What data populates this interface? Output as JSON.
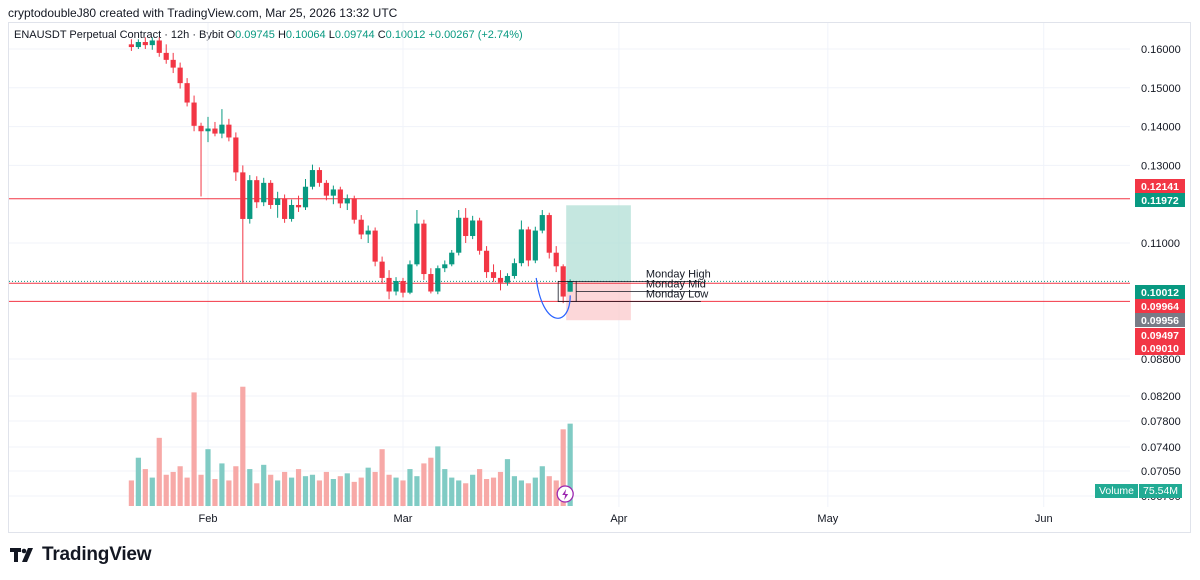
{
  "header": {
    "credit": "cryptodoubleJ80 created with TradingView.com, Mar 25, 2026 13:32 UTC"
  },
  "legend": {
    "symbol": "ENAUSDT Perpetual Contract · 12h · Bybit",
    "o_label": "O",
    "o_value": "0.09745",
    "h_label": "H",
    "h_value": "0.10064",
    "l_label": "L",
    "l_value": "0.09744",
    "c_label": "C",
    "c_value": "0.10012",
    "change": "+0.00267 (+2.74%)"
  },
  "colors": {
    "up": "#089981",
    "down": "#f23645",
    "level_line": "#f23645",
    "target_zone": "#b2dfd6",
    "stop_zone": "#fbc9cc",
    "arc": "#2962ff",
    "brand": "#131722"
  },
  "branding": {
    "logo_icon": "tradingview-logo-icon",
    "logo_text": "TradingView"
  },
  "volume_badge": {
    "label": "Volume",
    "value": "75.54M"
  },
  "chart_data": {
    "type": "candlestick",
    "timeframe": "12h",
    "y_tick_labels": [
      "0.16000",
      "0.15000",
      "0.14000",
      "0.13000",
      "0.11000",
      "0.08800",
      "0.08200",
      "0.07800",
      "0.07400",
      "0.07050",
      "0.06700"
    ],
    "y_ticks": [
      0.16,
      0.15,
      0.14,
      0.13,
      0.11,
      0.088,
      0.082,
      0.078,
      0.074,
      0.0705,
      0.067
    ],
    "x_ticks": [
      {
        "label": "Feb",
        "date": "2026-02-01"
      },
      {
        "label": "Mar",
        "date": "2026-03-01"
      },
      {
        "label": "Apr",
        "date": "2026-04-01"
      },
      {
        "label": "May",
        "date": "2026-05-01"
      },
      {
        "label": "Jun",
        "date": "2026-06-01"
      }
    ],
    "price_labels": [
      {
        "value": "0.12141",
        "color": "#f23645"
      },
      {
        "value": "0.11972",
        "color": "#089981"
      },
      {
        "value": "0.10012",
        "color": "#089981"
      },
      {
        "value": "0.09964",
        "color": "#f23645"
      },
      {
        "value": "0.09956",
        "color": "#787b86"
      },
      {
        "value": "0.09497",
        "color": "#f23645"
      },
      {
        "value": "0.09010",
        "color": "#f23645"
      }
    ],
    "horizontal_levels": [
      0.12141,
      0.09964,
      0.09497
    ],
    "annotations": [
      {
        "text": "Monday High",
        "price": 0.1001
      },
      {
        "text": "Monday Mid",
        "price": 0.0975
      },
      {
        "text": "Monday Low",
        "price": 0.0949
      }
    ],
    "position": {
      "entry": 0.09985,
      "target": 0.11972,
      "stop": 0.0901,
      "start": "2026-03-24",
      "end": "2026-04-01"
    },
    "candles": [
      {
        "date": "2026-01-21",
        "o": 0.1612,
        "h": 0.1625,
        "l": 0.1595,
        "c": 0.1605
      },
      {
        "date": "2026-01-22",
        "o": 0.1605,
        "h": 0.1625,
        "l": 0.16,
        "c": 0.1618
      },
      {
        "date": "2026-01-23",
        "o": 0.1618,
        "h": 0.163,
        "l": 0.16,
        "c": 0.161
      },
      {
        "date": "2026-01-24",
        "o": 0.161,
        "h": 0.163,
        "l": 0.1598,
        "c": 0.1622
      },
      {
        "date": "2026-01-25",
        "o": 0.1622,
        "h": 0.163,
        "l": 0.158,
        "c": 0.159
      },
      {
        "date": "2026-01-26",
        "o": 0.159,
        "h": 0.1612,
        "l": 0.1562,
        "c": 0.1572
      },
      {
        "date": "2026-01-27",
        "o": 0.1572,
        "h": 0.159,
        "l": 0.1538,
        "c": 0.1552
      },
      {
        "date": "2026-01-28",
        "o": 0.1552,
        "h": 0.1565,
        "l": 0.1498,
        "c": 0.1512
      },
      {
        "date": "2026-01-29",
        "o": 0.1512,
        "h": 0.1525,
        "l": 0.1452,
        "c": 0.1462
      },
      {
        "date": "2026-01-30",
        "o": 0.1462,
        "h": 0.148,
        "l": 0.1388,
        "c": 0.1402
      },
      {
        "date": "2026-01-31",
        "o": 0.1402,
        "h": 0.141,
        "l": 0.122,
        "c": 0.1388
      },
      {
        "date": "2026-02-01",
        "o": 0.1388,
        "h": 0.1425,
        "l": 0.136,
        "c": 0.1395
      },
      {
        "date": "2026-02-02",
        "o": 0.1395,
        "h": 0.1412,
        "l": 0.1375,
        "c": 0.1382
      },
      {
        "date": "2026-02-03",
        "o": 0.1382,
        "h": 0.1445,
        "l": 0.137,
        "c": 0.1405
      },
      {
        "date": "2026-02-04",
        "o": 0.1405,
        "h": 0.142,
        "l": 0.1362,
        "c": 0.1372
      },
      {
        "date": "2026-02-05",
        "o": 0.1372,
        "h": 0.1385,
        "l": 0.126,
        "c": 0.1282
      },
      {
        "date": "2026-02-06",
        "o": 0.1282,
        "h": 0.13,
        "l": 0.0998,
        "c": 0.1162
      },
      {
        "date": "2026-02-07",
        "o": 0.1162,
        "h": 0.1275,
        "l": 0.115,
        "c": 0.1262
      },
      {
        "date": "2026-02-08",
        "o": 0.1262,
        "h": 0.1272,
        "l": 0.119,
        "c": 0.1205
      },
      {
        "date": "2026-02-09",
        "o": 0.1205,
        "h": 0.1268,
        "l": 0.1195,
        "c": 0.1255
      },
      {
        "date": "2026-02-10",
        "o": 0.1255,
        "h": 0.1262,
        "l": 0.1188,
        "c": 0.1198
      },
      {
        "date": "2026-02-11",
        "o": 0.1198,
        "h": 0.1232,
        "l": 0.1165,
        "c": 0.1215
      },
      {
        "date": "2026-02-12",
        "o": 0.1215,
        "h": 0.1225,
        "l": 0.1152,
        "c": 0.1162
      },
      {
        "date": "2026-02-13",
        "o": 0.1162,
        "h": 0.1212,
        "l": 0.1155,
        "c": 0.1198
      },
      {
        "date": "2026-02-14",
        "o": 0.1198,
        "h": 0.1222,
        "l": 0.118,
        "c": 0.1192
      },
      {
        "date": "2026-02-15",
        "o": 0.1192,
        "h": 0.1265,
        "l": 0.1185,
        "c": 0.1245
      },
      {
        "date": "2026-02-16",
        "o": 0.1245,
        "h": 0.1302,
        "l": 0.1238,
        "c": 0.1288
      },
      {
        "date": "2026-02-17",
        "o": 0.1288,
        "h": 0.1295,
        "l": 0.1245,
        "c": 0.1255
      },
      {
        "date": "2026-02-18",
        "o": 0.1255,
        "h": 0.1262,
        "l": 0.121,
        "c": 0.1222
      },
      {
        "date": "2026-02-19",
        "o": 0.1222,
        "h": 0.1248,
        "l": 0.12,
        "c": 0.1238
      },
      {
        "date": "2026-02-20",
        "o": 0.1238,
        "h": 0.1245,
        "l": 0.119,
        "c": 0.1202
      },
      {
        "date": "2026-02-21",
        "o": 0.1202,
        "h": 0.1225,
        "l": 0.1185,
        "c": 0.1215
      },
      {
        "date": "2026-02-22",
        "o": 0.1215,
        "h": 0.1222,
        "l": 0.115,
        "c": 0.116
      },
      {
        "date": "2026-02-23",
        "o": 0.116,
        "h": 0.1172,
        "l": 0.111,
        "c": 0.1122
      },
      {
        "date": "2026-02-24",
        "o": 0.1122,
        "h": 0.1145,
        "l": 0.11,
        "c": 0.1132
      },
      {
        "date": "2026-02-25",
        "o": 0.1132,
        "h": 0.114,
        "l": 0.104,
        "c": 0.1052
      },
      {
        "date": "2026-02-26",
        "o": 0.1052,
        "h": 0.1065,
        "l": 0.0995,
        "c": 0.101
      },
      {
        "date": "2026-02-27",
        "o": 0.101,
        "h": 0.103,
        "l": 0.0955,
        "c": 0.0975
      },
      {
        "date": "2026-02-28",
        "o": 0.0975,
        "h": 0.1012,
        "l": 0.0965,
        "c": 0.1002
      },
      {
        "date": "2026-03-01",
        "o": 0.1002,
        "h": 0.101,
        "l": 0.096,
        "c": 0.0972
      },
      {
        "date": "2026-03-02",
        "o": 0.0972,
        "h": 0.1055,
        "l": 0.0968,
        "c": 0.1045
      },
      {
        "date": "2026-03-03",
        "o": 0.1045,
        "h": 0.1185,
        "l": 0.104,
        "c": 0.115
      },
      {
        "date": "2026-03-04",
        "o": 0.115,
        "h": 0.116,
        "l": 0.1005,
        "c": 0.102
      },
      {
        "date": "2026-03-05",
        "o": 0.102,
        "h": 0.1035,
        "l": 0.097,
        "c": 0.0975
      },
      {
        "date": "2026-03-06",
        "o": 0.0975,
        "h": 0.1042,
        "l": 0.0968,
        "c": 0.1035
      },
      {
        "date": "2026-03-07",
        "o": 0.1035,
        "h": 0.1055,
        "l": 0.1025,
        "c": 0.1045
      },
      {
        "date": "2026-03-08",
        "o": 0.1045,
        "h": 0.1082,
        "l": 0.104,
        "c": 0.1075
      },
      {
        "date": "2026-03-09",
        "o": 0.1075,
        "h": 0.1185,
        "l": 0.1068,
        "c": 0.1165
      },
      {
        "date": "2026-03-10",
        "o": 0.1165,
        "h": 0.119,
        "l": 0.11,
        "c": 0.1118
      },
      {
        "date": "2026-03-11",
        "o": 0.1118,
        "h": 0.117,
        "l": 0.111,
        "c": 0.1158
      },
      {
        "date": "2026-03-12",
        "o": 0.1158,
        "h": 0.1165,
        "l": 0.107,
        "c": 0.108
      },
      {
        "date": "2026-03-13",
        "o": 0.108,
        "h": 0.1092,
        "l": 0.101,
        "c": 0.1025
      },
      {
        "date": "2026-03-14",
        "o": 0.1025,
        "h": 0.1045,
        "l": 0.1,
        "c": 0.101
      },
      {
        "date": "2026-03-15",
        "o": 0.101,
        "h": 0.103,
        "l": 0.0978,
        "c": 0.0998
      },
      {
        "date": "2026-03-16",
        "o": 0.0998,
        "h": 0.1022,
        "l": 0.099,
        "c": 0.1015
      },
      {
        "date": "2026-03-17",
        "o": 0.1015,
        "h": 0.106,
        "l": 0.1008,
        "c": 0.1048
      },
      {
        "date": "2026-03-18",
        "o": 0.1048,
        "h": 0.1158,
        "l": 0.104,
        "c": 0.1135
      },
      {
        "date": "2026-03-19",
        "o": 0.1135,
        "h": 0.1142,
        "l": 0.104,
        "c": 0.1055
      },
      {
        "date": "2026-03-20",
        "o": 0.1055,
        "h": 0.1142,
        "l": 0.1048,
        "c": 0.1132
      },
      {
        "date": "2026-03-21",
        "o": 0.1132,
        "h": 0.1185,
        "l": 0.1125,
        "c": 0.1172
      },
      {
        "date": "2026-03-22",
        "o": 0.1172,
        "h": 0.1178,
        "l": 0.106,
        "c": 0.1075
      },
      {
        "date": "2026-03-23",
        "o": 0.1075,
        "h": 0.1092,
        "l": 0.1025,
        "c": 0.104
      },
      {
        "date": "2026-03-24",
        "o": 0.104,
        "h": 0.1045,
        "l": 0.0945,
        "c": 0.0962
      },
      {
        "date": "2026-03-25",
        "o": 0.09745,
        "h": 0.10064,
        "l": 0.09744,
        "c": 0.10012
      }
    ],
    "volume": [
      18,
      34,
      26,
      20,
      48,
      22,
      24,
      28,
      20,
      80,
      22,
      40,
      19,
      30,
      18,
      28,
      84,
      26,
      16,
      29,
      22,
      18,
      24,
      20,
      26,
      21,
      22,
      18,
      24,
      19,
      21,
      23,
      17,
      20,
      27,
      24,
      40,
      22,
      20,
      18,
      26,
      21,
      30,
      34,
      42,
      26,
      20,
      18,
      16,
      22,
      26,
      19,
      20,
      24,
      33,
      21,
      18,
      16,
      20,
      28,
      21,
      18,
      54,
      58,
      28
    ]
  }
}
